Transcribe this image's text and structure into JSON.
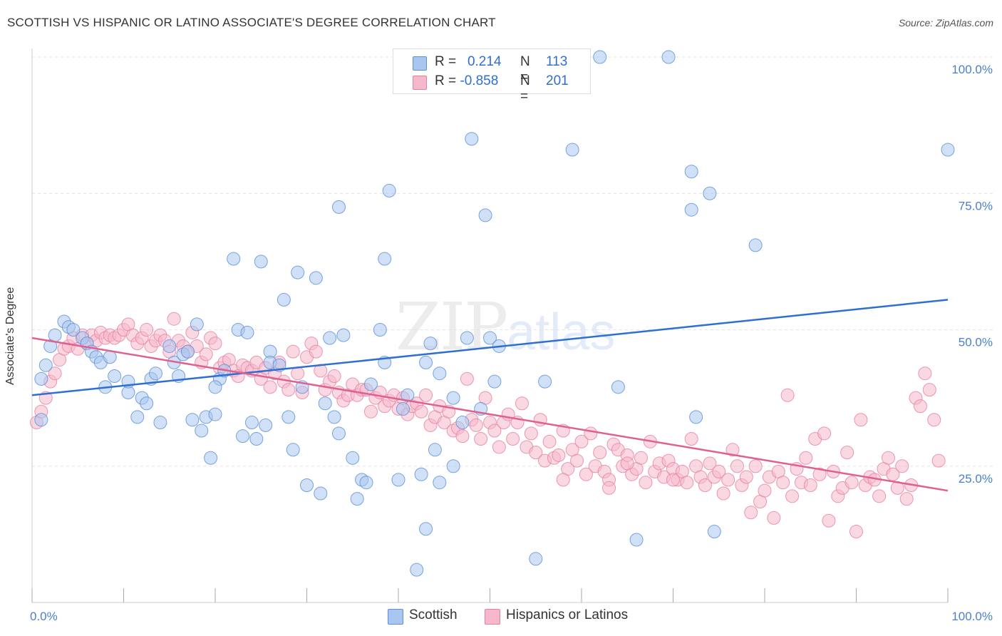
{
  "title": "SCOTTISH VS HISPANIC OR LATINO ASSOCIATE'S DEGREE CORRELATION CHART",
  "source": "Source: ZipAtlas.com",
  "watermark": {
    "zip": "ZIP",
    "atlas": "atlas"
  },
  "legend": {
    "rows": [
      {
        "r_label": "R =",
        "r_value": "0.214",
        "n_label": "N =",
        "n_value": "113",
        "color": "#a9c6f0"
      },
      {
        "r_label": "R =",
        "r_value": "-0.858",
        "n_label": "N =",
        "n_value": "201",
        "color": "#f5b8ca"
      }
    ]
  },
  "bottom_legend": {
    "scottish": "Scottish",
    "hispanic": "Hispanics or Latinos"
  },
  "colors": {
    "blue_fill": "#a9c6f0",
    "blue_stroke": "#5b8fd6",
    "blue_line": "#2f6fd1",
    "pink_fill": "#f5b8ca",
    "pink_stroke": "#e67fa0",
    "pink_line": "#e0608f"
  },
  "chart_data": {
    "type": "scatter",
    "title": "SCOTTISH VS HISPANIC OR LATINO ASSOCIATE'S DEGREE CORRELATION CHART",
    "xlabel": "",
    "ylabel": "Associate's Degree",
    "xlim": [
      0,
      100
    ],
    "ylim": [
      0,
      100
    ],
    "x_tick_labels": [
      "0.0%",
      "100.0%"
    ],
    "y_tick_labels": [
      "25.0%",
      "50.0%",
      "75.0%",
      "100.0%"
    ],
    "grid": true,
    "legend_position": "top-center",
    "series": [
      {
        "name": "Scottish",
        "r": 0.214,
        "n": 113,
        "trend": [
          [
            0,
            38.0
          ],
          [
            100,
            55.5
          ]
        ],
        "points": [
          [
            1.5,
            43.5
          ],
          [
            2,
            47
          ],
          [
            2.5,
            49
          ],
          [
            3.5,
            51.5
          ],
          [
            4,
            50.5
          ],
          [
            4.5,
            50
          ],
          [
            5.5,
            48.5
          ],
          [
            6,
            47.5
          ],
          [
            6.5,
            46
          ],
          [
            7,
            45
          ],
          [
            7.5,
            44
          ],
          [
            8.5,
            45
          ],
          [
            8,
            39.5
          ],
          [
            9,
            41.5
          ],
          [
            10.5,
            38.5
          ],
          [
            10.5,
            40.5
          ],
          [
            11.5,
            34
          ],
          [
            12,
            37.5
          ],
          [
            12.5,
            36.5
          ],
          [
            13,
            41
          ],
          [
            13.5,
            42
          ],
          [
            14,
            33
          ],
          [
            15,
            47
          ],
          [
            15.5,
            44
          ],
          [
            16,
            41.5
          ],
          [
            16.5,
            45.5
          ],
          [
            17,
            46
          ],
          [
            17.5,
            33.5
          ],
          [
            18,
            51
          ],
          [
            18.5,
            31.5
          ],
          [
            19,
            34
          ],
          [
            19.5,
            26.5
          ],
          [
            20,
            34.5
          ],
          [
            20.5,
            41
          ],
          [
            20,
            39.5
          ],
          [
            21,
            42.5
          ],
          [
            22,
            63
          ],
          [
            22.5,
            50
          ],
          [
            23,
            30.5
          ],
          [
            23.5,
            49.5
          ],
          [
            24,
            33
          ],
          [
            24.5,
            30
          ],
          [
            25,
            62.5
          ],
          [
            25.5,
            32.5
          ],
          [
            26,
            46
          ],
          [
            26,
            44
          ],
          [
            27,
            43.5
          ],
          [
            27.5,
            55.5
          ],
          [
            28,
            34
          ],
          [
            28.5,
            28
          ],
          [
            29,
            60.5
          ],
          [
            29.5,
            39.5
          ],
          [
            30,
            21.5
          ],
          [
            31,
            59.5
          ],
          [
            31.5,
            20
          ],
          [
            32,
            36.5
          ],
          [
            32.5,
            48.5
          ],
          [
            33,
            34
          ],
          [
            33.5,
            31
          ],
          [
            33.5,
            72.5
          ],
          [
            34,
            49
          ],
          [
            35,
            26.5
          ],
          [
            35.5,
            19
          ],
          [
            36,
            22.5
          ],
          [
            36.5,
            22
          ],
          [
            37,
            40
          ],
          [
            38,
            50
          ],
          [
            38.5,
            44
          ],
          [
            38.5,
            63
          ],
          [
            39,
            75.5
          ],
          [
            40,
            22.5
          ],
          [
            40.5,
            35.5
          ],
          [
            41,
            38
          ],
          [
            42,
            6
          ],
          [
            42.5,
            23.5
          ],
          [
            43,
            13.5
          ],
          [
            43.5,
            47.5
          ],
          [
            43,
            44
          ],
          [
            44,
            28
          ],
          [
            44.5,
            22
          ],
          [
            44.5,
            42
          ],
          [
            46,
            25
          ],
          [
            46,
            37.5
          ],
          [
            47,
            33
          ],
          [
            47.5,
            48.5
          ],
          [
            48,
            85
          ],
          [
            49,
            35.5
          ],
          [
            49.5,
            71
          ],
          [
            50,
            48.5
          ],
          [
            50.5,
            40.5
          ],
          [
            51,
            47
          ],
          [
            55,
            8
          ],
          [
            56,
            40.5
          ],
          [
            59,
            83
          ],
          [
            62,
            100
          ],
          [
            64,
            39.5
          ],
          [
            66,
            11.5
          ],
          [
            69.5,
            100
          ],
          [
            72,
            79
          ],
          [
            72.5,
            34
          ],
          [
            72,
            72
          ],
          [
            74,
            75
          ],
          [
            74.5,
            13
          ],
          [
            79,
            65.5
          ],
          [
            100,
            83
          ],
          [
            1,
            33.5
          ],
          [
            1,
            41
          ]
        ]
      },
      {
        "name": "Hispanics or Latinos",
        "r": -0.858,
        "n": 201,
        "trend": [
          [
            0,
            48.5
          ],
          [
            100,
            20.5
          ]
        ],
        "points": [
          [
            0.5,
            33
          ],
          [
            1,
            35
          ],
          [
            1.5,
            37.5
          ],
          [
            2,
            40.5
          ],
          [
            2.5,
            42
          ],
          [
            3,
            44.5
          ],
          [
            3.5,
            46.5
          ],
          [
            4,
            47
          ],
          [
            4.5,
            48.5
          ],
          [
            5,
            46.5
          ],
          [
            5.5,
            49
          ],
          [
            6,
            47.5
          ],
          [
            6.5,
            49
          ],
          [
            7,
            48
          ],
          [
            7.5,
            49.5
          ],
          [
            8,
            48.5
          ],
          [
            8.5,
            49
          ],
          [
            9,
            48.5
          ],
          [
            9.5,
            49
          ],
          [
            10,
            50
          ],
          [
            10.5,
            51
          ],
          [
            11,
            49
          ],
          [
            11.5,
            47.5
          ],
          [
            12,
            48.5
          ],
          [
            12.5,
            50
          ],
          [
            13,
            47
          ],
          [
            13.5,
            48
          ],
          [
            14,
            49
          ],
          [
            14.5,
            48
          ],
          [
            15,
            46
          ],
          [
            15.5,
            52
          ],
          [
            16,
            48
          ],
          [
            16.5,
            47
          ],
          [
            17,
            46
          ],
          [
            17.5,
            49.5
          ],
          [
            18,
            47
          ],
          [
            18.5,
            44
          ],
          [
            19,
            45.5
          ],
          [
            19.5,
            48.5
          ],
          [
            20,
            47.5
          ],
          [
            20.5,
            43
          ],
          [
            21,
            44
          ],
          [
            21.5,
            44.5
          ],
          [
            22,
            42.5
          ],
          [
            22.5,
            41.5
          ],
          [
            23,
            43.5
          ],
          [
            23.5,
            43
          ],
          [
            24,
            42.5
          ],
          [
            24.5,
            44
          ],
          [
            25,
            41
          ],
          [
            25.5,
            43
          ],
          [
            26,
            39.5
          ],
          [
            26.5,
            42
          ],
          [
            27,
            44
          ],
          [
            27.5,
            40.5
          ],
          [
            28,
            39
          ],
          [
            28.5,
            46
          ],
          [
            29,
            42
          ],
          [
            29.5,
            38.5
          ],
          [
            30,
            45
          ],
          [
            30.5,
            47.5
          ],
          [
            31,
            46
          ],
          [
            31.5,
            42.5
          ],
          [
            32,
            39
          ],
          [
            32.5,
            40.5
          ],
          [
            33,
            41.5
          ],
          [
            33.5,
            38.5
          ],
          [
            34,
            37
          ],
          [
            34.5,
            38
          ],
          [
            35,
            40
          ],
          [
            35.5,
            38
          ],
          [
            36,
            39
          ],
          [
            36.5,
            39
          ],
          [
            37,
            35
          ],
          [
            37.5,
            37.5
          ],
          [
            38,
            38.5
          ],
          [
            38.5,
            36
          ],
          [
            39,
            37
          ],
          [
            39.5,
            38
          ],
          [
            40,
            35.5
          ],
          [
            40.5,
            37.5
          ],
          [
            41,
            34.5
          ],
          [
            41.5,
            36
          ],
          [
            42,
            36.5
          ],
          [
            42.5,
            35
          ],
          [
            43,
            38
          ],
          [
            43.5,
            32.5
          ],
          [
            44,
            34
          ],
          [
            44.5,
            36
          ],
          [
            45,
            33
          ],
          [
            45.5,
            35
          ],
          [
            46,
            31.5
          ],
          [
            46.5,
            32
          ],
          [
            47,
            30.5
          ],
          [
            47.5,
            41
          ],
          [
            48,
            33.5
          ],
          [
            48.5,
            32.5
          ],
          [
            49,
            30
          ],
          [
            49.5,
            37.5
          ],
          [
            50,
            33
          ],
          [
            50.5,
            31.5
          ],
          [
            51,
            28.5
          ],
          [
            51.5,
            33
          ],
          [
            52,
            34.5
          ],
          [
            52.5,
            30
          ],
          [
            53,
            33
          ],
          [
            53.5,
            36.5
          ],
          [
            54,
            28.5
          ],
          [
            54.5,
            31
          ],
          [
            55,
            27.5
          ],
          [
            55.5,
            33.5
          ],
          [
            56,
            26
          ],
          [
            56.5,
            29.5
          ],
          [
            57,
            26.5
          ],
          [
            57.5,
            27
          ],
          [
            58,
            31.5
          ],
          [
            58.5,
            24.5
          ],
          [
            59,
            28
          ],
          [
            59.5,
            26
          ],
          [
            60,
            29.5
          ],
          [
            60.5,
            23.5
          ],
          [
            61,
            31
          ],
          [
            61.5,
            25
          ],
          [
            62,
            27.5
          ],
          [
            62.5,
            24
          ],
          [
            63,
            22.5
          ],
          [
            63.5,
            29
          ],
          [
            64,
            28
          ],
          [
            64.5,
            25
          ],
          [
            65,
            27
          ],
          [
            65.5,
            23.5
          ],
          [
            66,
            24.5
          ],
          [
            66.5,
            26.5
          ],
          [
            67,
            22
          ],
          [
            67.5,
            29.5
          ],
          [
            68,
            24
          ],
          [
            68.5,
            25.5
          ],
          [
            69,
            23
          ],
          [
            69.5,
            26
          ],
          [
            70,
            24.5
          ],
          [
            70.5,
            22.5
          ],
          [
            71,
            24
          ],
          [
            71.5,
            22
          ],
          [
            72,
            30
          ],
          [
            72.5,
            25
          ],
          [
            73,
            23
          ],
          [
            73.5,
            21.5
          ],
          [
            74,
            25.5
          ],
          [
            74.5,
            23
          ],
          [
            75,
            24
          ],
          [
            75.5,
            20
          ],
          [
            76,
            22.5
          ],
          [
            76.5,
            28
          ],
          [
            77,
            25
          ],
          [
            77.5,
            21.5
          ],
          [
            78,
            23
          ],
          [
            78.5,
            16.5
          ],
          [
            79,
            25
          ],
          [
            79.5,
            18.5
          ],
          [
            80,
            20.5
          ],
          [
            80.5,
            23
          ],
          [
            81,
            15.5
          ],
          [
            81.5,
            24
          ],
          [
            82,
            22
          ],
          [
            82.5,
            38
          ],
          [
            83,
            19.5
          ],
          [
            83.5,
            24.5
          ],
          [
            84,
            22
          ],
          [
            84.5,
            26.5
          ],
          [
            85,
            21.5
          ],
          [
            85.5,
            30
          ],
          [
            86,
            23.5
          ],
          [
            86.5,
            31
          ],
          [
            87,
            15
          ],
          [
            87.5,
            24
          ],
          [
            88,
            19.5
          ],
          [
            88.5,
            21
          ],
          [
            89,
            27.5
          ],
          [
            89.5,
            22
          ],
          [
            90,
            13
          ],
          [
            90.5,
            33.5
          ],
          [
            91,
            21.5
          ],
          [
            91.5,
            23
          ],
          [
            92,
            22.5
          ],
          [
            92.5,
            19.5
          ],
          [
            93,
            24.5
          ],
          [
            93.5,
            26.5
          ],
          [
            94,
            23.5
          ],
          [
            94.5,
            21
          ],
          [
            95,
            25
          ],
          [
            95.5,
            19
          ],
          [
            96,
            21.5
          ],
          [
            96.5,
            37.5
          ],
          [
            97,
            36
          ],
          [
            97.5,
            42
          ],
          [
            98,
            39
          ],
          [
            98.5,
            33.5
          ],
          [
            99,
            26
          ],
          [
            65,
            25.5
          ],
          [
            70,
            22.5
          ],
          [
            58,
            22.5
          ],
          [
            63,
            21
          ]
        ]
      }
    ]
  }
}
